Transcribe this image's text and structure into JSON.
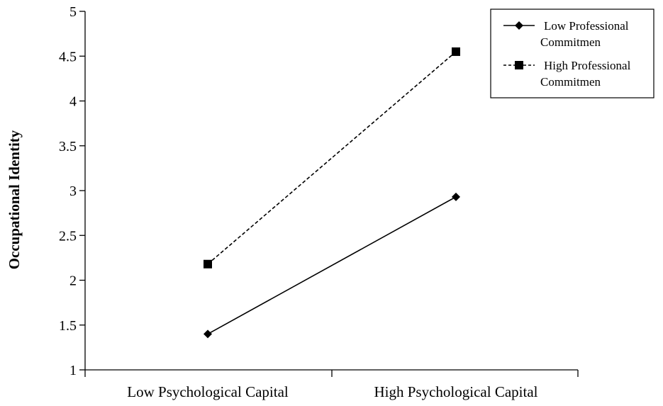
{
  "chart_data": {
    "type": "line",
    "title": "",
    "xlabel": "",
    "ylabel": "Occupational  Identity",
    "categories": [
      "Low Psychological Capital",
      "High Psychological Capital"
    ],
    "yticks": [
      "1",
      "1.5",
      "2",
      "2.5",
      "3",
      "3.5",
      "4",
      "4.5",
      "5"
    ],
    "ylim": [
      1,
      5
    ],
    "grid": false,
    "legend_position": "top-right",
    "series": [
      {
        "name_lines": [
          "Low Professional",
          "Commitmen"
        ],
        "values": [
          1.4,
          2.93
        ],
        "marker": "diamond",
        "line_style": "solid",
        "color": "#000000"
      },
      {
        "name_lines": [
          "High Professional",
          "Commitmen"
        ],
        "values": [
          2.18,
          4.55
        ],
        "marker": "square",
        "line_style": "dashed",
        "color": "#000000"
      }
    ]
  }
}
